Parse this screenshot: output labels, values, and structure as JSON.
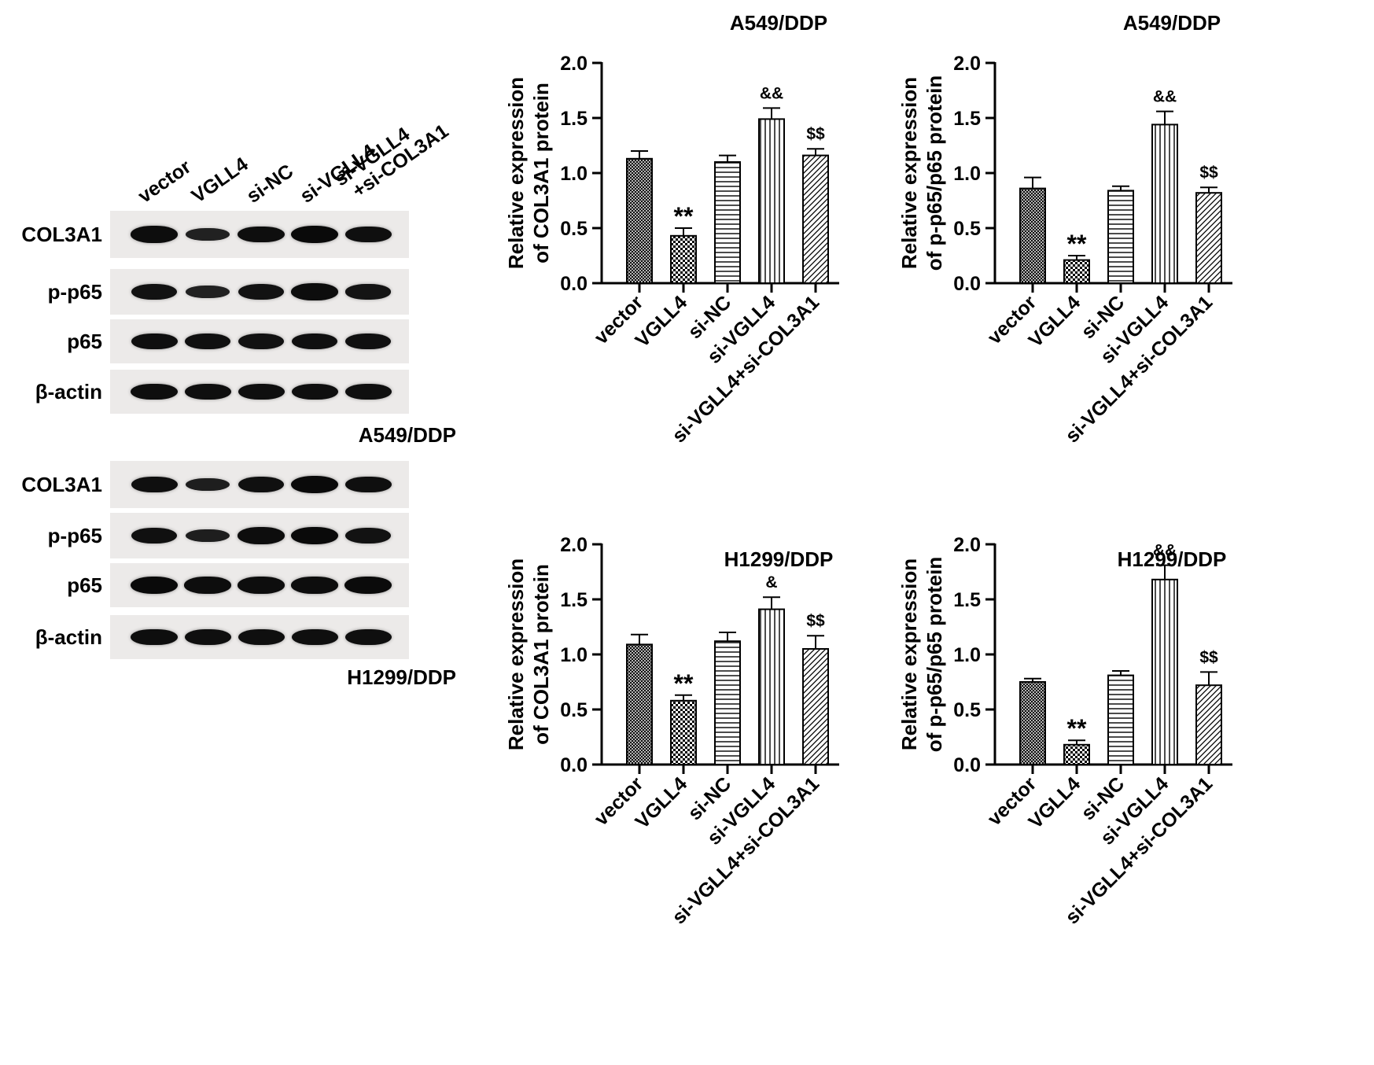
{
  "blot": {
    "lanes": [
      {
        "line1": "vector",
        "line2": ""
      },
      {
        "line1": "VGLL4",
        "line2": ""
      },
      {
        "line1": "si-NC",
        "line2": ""
      },
      {
        "line1": "si-VGLL4",
        "line2": ""
      },
      {
        "line1": "si-VGLL4",
        "line2": "+si-COL3A1"
      }
    ],
    "sets": [
      {
        "caption": "A549/DDP",
        "rows": [
          {
            "label": "COL3A1",
            "intensity": [
              0.95,
              0.55,
              0.92,
              1.0,
              0.9
            ]
          },
          {
            "label": "p-p65",
            "intensity": [
              0.85,
              0.55,
              0.85,
              0.95,
              0.8
            ]
          },
          {
            "label": "p65",
            "intensity": [
              0.9,
              0.88,
              0.85,
              0.88,
              0.88
            ]
          },
          {
            "label": "β-actin",
            "intensity": [
              0.92,
              0.9,
              0.9,
              0.9,
              0.9
            ]
          }
        ]
      },
      {
        "caption": "H1299/DDP",
        "rows": [
          {
            "label": "COL3A1",
            "intensity": [
              0.9,
              0.6,
              0.88,
              1.0,
              0.9
            ]
          },
          {
            "label": "p-p65",
            "intensity": [
              0.88,
              0.6,
              0.95,
              1.0,
              0.85
            ]
          },
          {
            "label": "p65",
            "intensity": [
              1.0,
              0.95,
              0.95,
              0.95,
              0.98
            ]
          },
          {
            "label": "β-actin",
            "intensity": [
              0.92,
              0.9,
              0.9,
              0.9,
              0.9
            ]
          }
        ]
      }
    ]
  },
  "chart_data": [
    {
      "type": "bar",
      "title": "A549/DDP",
      "ylabel_line1": "Relative expression",
      "ylabel_line2": "of COL3A1 protein",
      "categories": [
        "vector",
        "VGLL4",
        "si-NC",
        "si-VGLL4",
        "si-VGLL4+si-COL3A1"
      ],
      "values": [
        1.13,
        0.43,
        1.1,
        1.49,
        1.16
      ],
      "errors": [
        0.07,
        0.07,
        0.06,
        0.1,
        0.06
      ],
      "annotations": [
        "",
        "**",
        "",
        "&&",
        "$$"
      ],
      "ylim": [
        0,
        2.0
      ],
      "yticks": [
        "0.0",
        "0.5",
        "1.0",
        "1.5",
        "2.0"
      ]
    },
    {
      "type": "bar",
      "title": "A549/DDP",
      "ylabel_line1": "Relative expression",
      "ylabel_line2": "of p-p65/p65 protein",
      "categories": [
        "vector",
        "VGLL4",
        "si-NC",
        "si-VGLL4",
        "si-VGLL4+si-COL3A1"
      ],
      "values": [
        0.86,
        0.21,
        0.84,
        1.44,
        0.82
      ],
      "errors": [
        0.1,
        0.04,
        0.04,
        0.12,
        0.05
      ],
      "annotations": [
        "",
        "**",
        "",
        "&&",
        "$$"
      ],
      "ylim": [
        0,
        2.0
      ],
      "yticks": [
        "0.0",
        "0.5",
        "1.0",
        "1.5",
        "2.0"
      ]
    },
    {
      "type": "bar",
      "title": "H1299/DDP",
      "ylabel_line1": "Relative expression",
      "ylabel_line2": "of COL3A1 protein",
      "categories": [
        "vector",
        "VGLL4",
        "si-NC",
        "si-VGLL4",
        "si-VGLL4+si-COL3A1"
      ],
      "values": [
        1.09,
        0.58,
        1.12,
        1.41,
        1.05
      ],
      "errors": [
        0.09,
        0.05,
        0.08,
        0.11,
        0.12
      ],
      "annotations": [
        "",
        "**",
        "",
        "&",
        "$$"
      ],
      "ylim": [
        0,
        2.0
      ],
      "yticks": [
        "0.0",
        "0.5",
        "1.0",
        "1.5",
        "2.0"
      ]
    },
    {
      "type": "bar",
      "title": "H1299/DDP",
      "ylabel_line1": "Relative expression",
      "ylabel_line2": "of p-p65/p65 protein",
      "categories": [
        "vector",
        "VGLL4",
        "si-NC",
        "si-VGLL4",
        "si-VGLL4+si-COL3A1"
      ],
      "values": [
        0.75,
        0.18,
        0.81,
        1.68,
        0.72
      ],
      "errors": [
        0.03,
        0.04,
        0.04,
        0.13,
        0.12
      ],
      "annotations": [
        "",
        "**",
        "",
        "&&",
        "$$"
      ],
      "ylim": [
        0,
        2.0
      ],
      "yticks": [
        "0.0",
        "0.5",
        "1.0",
        "1.5",
        "2.0"
      ]
    }
  ]
}
